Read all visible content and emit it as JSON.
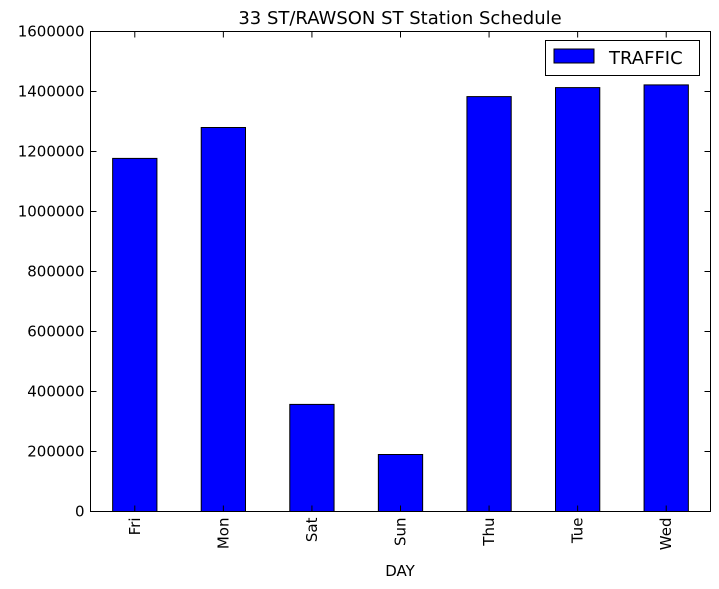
{
  "chart_data": {
    "type": "bar",
    "title": "33 ST/RAWSON ST Station Schedule",
    "xlabel": "DAY",
    "ylabel": "",
    "categories": [
      "Fri",
      "Mon",
      "Sat",
      "Sun",
      "Thu",
      "Tue",
      "Wed"
    ],
    "series": [
      {
        "name": "TRAFFIC",
        "color": "#0000ff",
        "values": [
          1177000,
          1280000,
          357000,
          190000,
          1383000,
          1413000,
          1422000
        ]
      }
    ],
    "ylim": [
      0,
      1600000
    ],
    "yticks": [
      "0",
      "200000",
      "400000",
      "600000",
      "800000",
      "1000000",
      "1200000",
      "1400000",
      "1600000"
    ],
    "yticks_values": [
      0,
      200000,
      400000,
      600000,
      800000,
      1000000,
      1200000,
      1400000,
      1600000
    ],
    "grid": false,
    "legend_position": "top-right"
  }
}
